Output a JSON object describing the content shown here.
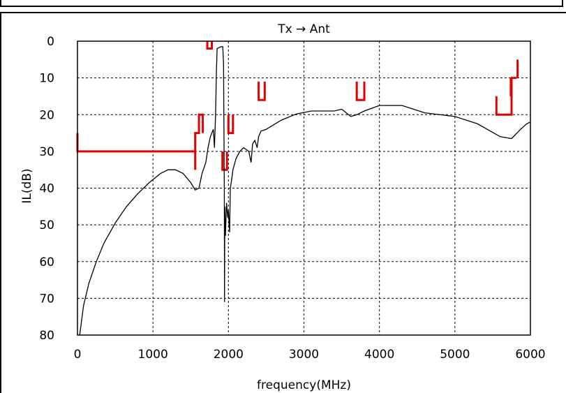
{
  "chart_data": {
    "type": "line",
    "title": "Tx → Ant",
    "xlabel": "frequency(MHz)",
    "ylabel": "IL(dB)",
    "xlim": [
      0,
      6000
    ],
    "ylim": [
      0,
      80
    ],
    "y_inverted": true,
    "grid": true,
    "x_ticks": [
      0,
      1000,
      2000,
      3000,
      4000,
      5000,
      6000
    ],
    "y_ticks": [
      0,
      10,
      20,
      30,
      40,
      50,
      60,
      70,
      80
    ],
    "colors": {
      "series": "#000000",
      "spec": "#e00000",
      "grid": "#000000"
    },
    "series": [
      {
        "color": "#000000",
        "points": [
          [
            30,
            80
          ],
          [
            80,
            72
          ],
          [
            150,
            66
          ],
          [
            250,
            60
          ],
          [
            350,
            55
          ],
          [
            500,
            49.5
          ],
          [
            650,
            45
          ],
          [
            800,
            41.5
          ],
          [
            950,
            38.5
          ],
          [
            1100,
            36
          ],
          [
            1200,
            35
          ],
          [
            1300,
            35
          ],
          [
            1400,
            36
          ],
          [
            1500,
            38.5
          ],
          [
            1560,
            40.5
          ],
          [
            1610,
            40
          ],
          [
            1650,
            36
          ],
          [
            1700,
            33
          ],
          [
            1730,
            29
          ],
          [
            1760,
            26
          ],
          [
            1780,
            25
          ],
          [
            1800,
            24
          ],
          [
            1815,
            29
          ],
          [
            1830,
            20
          ],
          [
            1840,
            9
          ],
          [
            1850,
            2
          ],
          [
            1900,
            1.5
          ],
          [
            1925,
            1.5
          ],
          [
            1935,
            6
          ],
          [
            1945,
            40
          ],
          [
            1948,
            71
          ],
          [
            1952,
            45
          ],
          [
            1960,
            53
          ],
          [
            1975,
            44
          ],
          [
            1990,
            48
          ],
          [
            2000,
            46
          ],
          [
            2015,
            52
          ],
          [
            2025,
            40
          ],
          [
            2040,
            38
          ],
          [
            2060,
            35
          ],
          [
            2100,
            32
          ],
          [
            2150,
            30
          ],
          [
            2200,
            29
          ],
          [
            2270,
            30
          ],
          [
            2300,
            33
          ],
          [
            2320,
            28
          ],
          [
            2350,
            27
          ],
          [
            2380,
            29
          ],
          [
            2400,
            26
          ],
          [
            2430,
            24.5
          ],
          [
            2500,
            24
          ],
          [
            2700,
            21.5
          ],
          [
            2900,
            19.8
          ],
          [
            3100,
            19
          ],
          [
            3400,
            19
          ],
          [
            3500,
            18.5
          ],
          [
            3620,
            20.5
          ],
          [
            3700,
            20
          ],
          [
            3800,
            19
          ],
          [
            4000,
            17.5
          ],
          [
            4300,
            17.5
          ],
          [
            4600,
            19.5
          ],
          [
            5000,
            20.5
          ],
          [
            5300,
            22.5
          ],
          [
            5600,
            26
          ],
          [
            5750,
            26.5
          ],
          [
            5870,
            24
          ],
          [
            5950,
            22.5
          ],
          [
            6000,
            22
          ]
        ]
      }
    ],
    "spec_lines": [
      {
        "color": "#e00000",
        "points": [
          [
            0,
            25
          ],
          [
            0,
            30
          ],
          [
            1560,
            30
          ],
          [
            1560,
            35
          ],
          [
            1560,
            25
          ],
          [
            1610,
            25
          ],
          [
            1610,
            20
          ],
          [
            1660,
            20
          ],
          [
            1660,
            25
          ]
        ]
      },
      {
        "color": "#e00000",
        "points": [
          [
            1720,
            0
          ],
          [
            1720,
            2
          ],
          [
            1780,
            2
          ],
          [
            1780,
            0
          ]
        ]
      },
      {
        "color": "#e00000",
        "points": [
          [
            1920,
            30
          ],
          [
            1920,
            35
          ],
          [
            1980,
            35
          ],
          [
            1980,
            30
          ]
        ]
      },
      {
        "color": "#e00000",
        "points": [
          [
            2000,
            20
          ],
          [
            2000,
            25
          ],
          [
            2060,
            25
          ],
          [
            2060,
            20
          ]
        ]
      },
      {
        "color": "#e00000",
        "points": [
          [
            2400,
            11
          ],
          [
            2400,
            16
          ],
          [
            2480,
            16
          ],
          [
            2480,
            11
          ]
        ]
      },
      {
        "color": "#e00000",
        "points": [
          [
            3700,
            11
          ],
          [
            3700,
            16
          ],
          [
            3800,
            16
          ],
          [
            3800,
            11
          ]
        ]
      },
      {
        "color": "#e00000",
        "points": [
          [
            5550,
            15
          ],
          [
            5550,
            20
          ],
          [
            5750,
            20
          ],
          [
            5750,
            15
          ],
          [
            5750,
            10
          ],
          [
            5820,
            10
          ],
          [
            5820,
            10
          ]
        ]
      },
      {
        "color": "#e00000",
        "points": [
          [
            5740,
            10
          ],
          [
            5740,
            15
          ]
        ]
      },
      {
        "color": "#e00000",
        "points": [
          [
            5830,
            10
          ],
          [
            5830,
            5
          ]
        ]
      }
    ]
  }
}
